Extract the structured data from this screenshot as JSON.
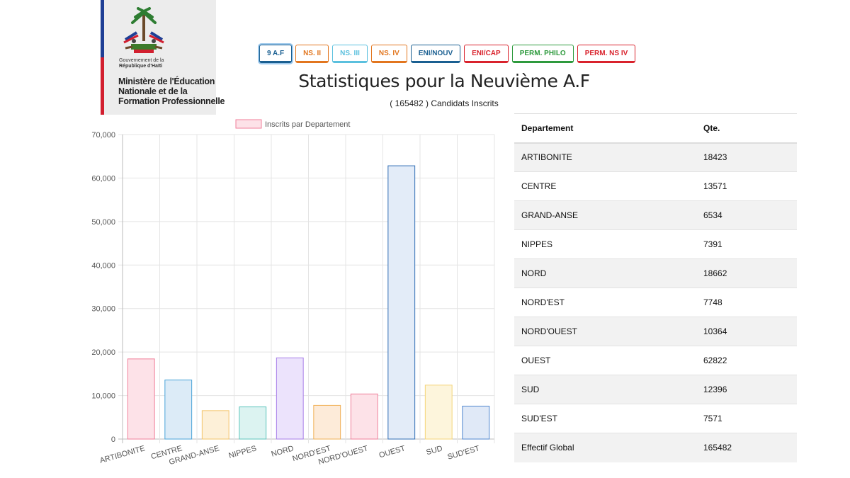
{
  "logo": {
    "gov_line1": "Gouvernement de la",
    "gov_line2": "République d'Haïti",
    "ministry_line1": "Ministère de l'Éducation",
    "ministry_line2": "Nationale et de la",
    "ministry_line3": "Formation Professionnelle"
  },
  "exam_buttons": [
    {
      "label": "9 A.F",
      "color": "#1a5f91",
      "active": true
    },
    {
      "label": "NS. II",
      "color": "#e2761f"
    },
    {
      "label": "NS. III",
      "color": "#5bc0de"
    },
    {
      "label": "NS. IV",
      "color": "#e2761f"
    },
    {
      "label": "ENI/NOUV",
      "color": "#1a5f91"
    },
    {
      "label": "ENI/CAP",
      "color": "#d9232d"
    },
    {
      "label": "PERM. PHILO",
      "color": "#2e9a3d"
    },
    {
      "label": "PERM. NS IV",
      "color": "#d9232d"
    }
  ],
  "page": {
    "title": "Statistiques pour la Neuvième A.F",
    "subtitle": "( 165482 ) Candidats Inscrits"
  },
  "chart_data": {
    "type": "bar",
    "legend": "Inscrits par Departement",
    "legend_position": "top-center",
    "grid": true,
    "categories": [
      "ARTIBONITE",
      "CENTRE",
      "GRAND-ANSE",
      "NIPPES",
      "NORD",
      "NORD'EST",
      "NORD'OUEST",
      "OUEST",
      "SUD",
      "SUD'EST"
    ],
    "values": [
      18423,
      13571,
      6534,
      7391,
      18662,
      7748,
      10364,
      62822,
      12396,
      7571
    ],
    "ylim": [
      0,
      70000
    ],
    "yticks": [
      "0",
      "10,000",
      "20,000",
      "30,000",
      "40,000",
      "50,000",
      "60,000",
      "70,000"
    ],
    "bar_fills": [
      "#fde2e8",
      "#dcebf7",
      "#fdf0d8",
      "#dcf3f1",
      "#ece3fc",
      "#fdebd9",
      "#fde2e8",
      "#e3ecf8",
      "#fdf5dc",
      "#e0e9f7"
    ],
    "bar_strokes": [
      "#f07f9a",
      "#4aa3d8",
      "#f3c46a",
      "#5cc5bd",
      "#a77de8",
      "#f0b056",
      "#f07f9a",
      "#2f6db5",
      "#f5d57a",
      "#4f86cf"
    ],
    "legend_fill": "#fde2e8",
    "legend_stroke": "#f07f9a"
  },
  "table": {
    "header_departement": "Departement",
    "header_qte": "Qte.",
    "rows": [
      {
        "dept": "ARTIBONITE",
        "qte": "18423"
      },
      {
        "dept": "CENTRE",
        "qte": "13571"
      },
      {
        "dept": "GRAND-ANSE",
        "qte": "6534"
      },
      {
        "dept": "NIPPES",
        "qte": "7391"
      },
      {
        "dept": "NORD",
        "qte": "18662"
      },
      {
        "dept": "NORD'EST",
        "qte": "7748"
      },
      {
        "dept": "NORD'OUEST",
        "qte": "10364"
      },
      {
        "dept": "OUEST",
        "qte": "62822"
      },
      {
        "dept": "SUD",
        "qte": "12396"
      },
      {
        "dept": "SUD'EST",
        "qte": "7571"
      },
      {
        "dept": "Effectif Global",
        "qte": "165482"
      }
    ]
  }
}
